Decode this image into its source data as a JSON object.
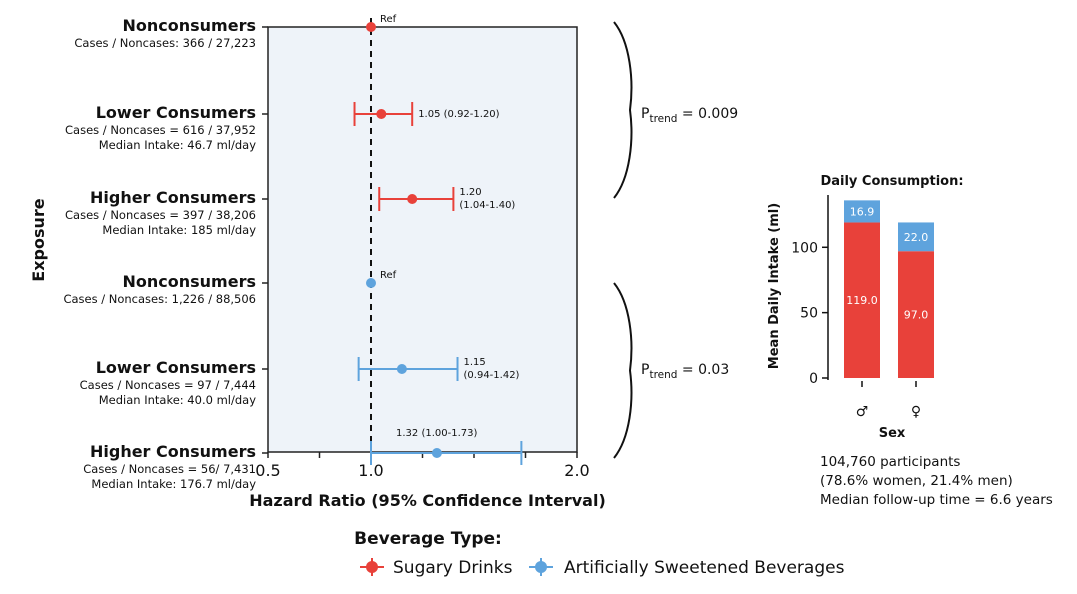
{
  "chart_data": [
    {
      "type": "forest",
      "y_axis_title": "Exposure",
      "x_axis_title": "Hazard Ratio (95% Confidence Interval)",
      "xlim": [
        0.5,
        2.0
      ],
      "ticks": [
        {
          "value": 0.5,
          "label": "0.5"
        },
        {
          "value": 0.75,
          "label": ""
        },
        {
          "value": 1.0,
          "label": "1.0"
        },
        {
          "value": 1.25,
          "label": ""
        },
        {
          "value": 1.5,
          "label": ""
        },
        {
          "value": 1.75,
          "label": ""
        },
        {
          "value": 2.0,
          "label": "2.0"
        }
      ],
      "reference_value": 1.0,
      "rows": [
        {
          "label": "Nonconsumers",
          "lines": [
            "Cases / Noncases: 366 / 27,223"
          ],
          "series": "sugary",
          "hr": 1.0,
          "lo": null,
          "hi": null,
          "ci_text": [
            "Ref"
          ]
        },
        {
          "label": "Lower Consumers",
          "lines": [
            "Cases / Noncases = 616 / 37,952",
            "Median Intake: 46.7 ml/day"
          ],
          "series": "sugary",
          "hr": 1.05,
          "lo": 0.92,
          "hi": 1.2,
          "ci_text": [
            "1.05 (0.92-1.20)"
          ]
        },
        {
          "label": "Higher Consumers",
          "lines": [
            "Cases / Noncases = 397 / 38,206",
            "Median Intake: 185 ml/day"
          ],
          "series": "sugary",
          "hr": 1.2,
          "lo": 1.04,
          "hi": 1.4,
          "ci_text": [
            "1.20",
            "(1.04-1.40)"
          ]
        },
        {
          "label": "Nonconsumers",
          "lines": [
            "Cases / Noncases: 1,226 / 88,506"
          ],
          "series": "asb",
          "hr": 1.0,
          "lo": null,
          "hi": null,
          "ci_text": [
            "Ref"
          ]
        },
        {
          "label": "Lower Consumers",
          "lines": [
            "Cases / Noncases = 97 / 7,444",
            "Median Intake: 40.0 ml/day"
          ],
          "series": "asb",
          "hr": 1.15,
          "lo": 0.94,
          "hi": 1.42,
          "ci_text": [
            "1.15",
            "(0.94-1.42)"
          ]
        },
        {
          "label": "Higher Consumers",
          "lines": [
            "Cases / Noncases = 56/ 7,431",
            "Median Intake: 176.7 ml/day"
          ],
          "series": "asb",
          "hr": 1.32,
          "lo": 1.0,
          "hi": 1.73,
          "ci_text": [
            "1.32 (1.00-1.73)"
          ]
        }
      ],
      "p_trend": [
        {
          "prefix": "P",
          "sub": "trend",
          "value": " = 0.009"
        },
        {
          "prefix": "P",
          "sub": "trend",
          "value": " = 0.03"
        }
      ],
      "legend": {
        "title": "Beverage Type:",
        "items": [
          {
            "key": "sugary",
            "label": "Sugary Drinks"
          },
          {
            "key": "asb",
            "label": "Artificially Sweetened Beverages"
          }
        ]
      }
    },
    {
      "type": "stacked-bar",
      "title": "Daily Consumption:",
      "ylabel": "Mean Daily Intake (ml)",
      "xlabel": "Sex",
      "ylim": [
        0,
        140
      ],
      "yticks": [
        0,
        50,
        100
      ],
      "categories": [
        "♂",
        "♀"
      ],
      "series": [
        {
          "name": "Sugary Drinks",
          "key": "sugary",
          "values": [
            119.0,
            97.0
          ],
          "labels": [
            "119.0",
            "97.0"
          ]
        },
        {
          "name": "Artificially Sweetened Beverages",
          "key": "asb",
          "values": [
            16.9,
            22.0
          ],
          "labels": [
            "16.9",
            "22.0"
          ]
        }
      ]
    }
  ],
  "summary": [
    "104,760 participants",
    "(78.6% women, 21.4% men)",
    "Median follow-up time = 6.6 years"
  ],
  "colors": {
    "sugary": "#e8413a",
    "asb": "#5ea3dd",
    "panel_bg": "#eef3f9"
  }
}
